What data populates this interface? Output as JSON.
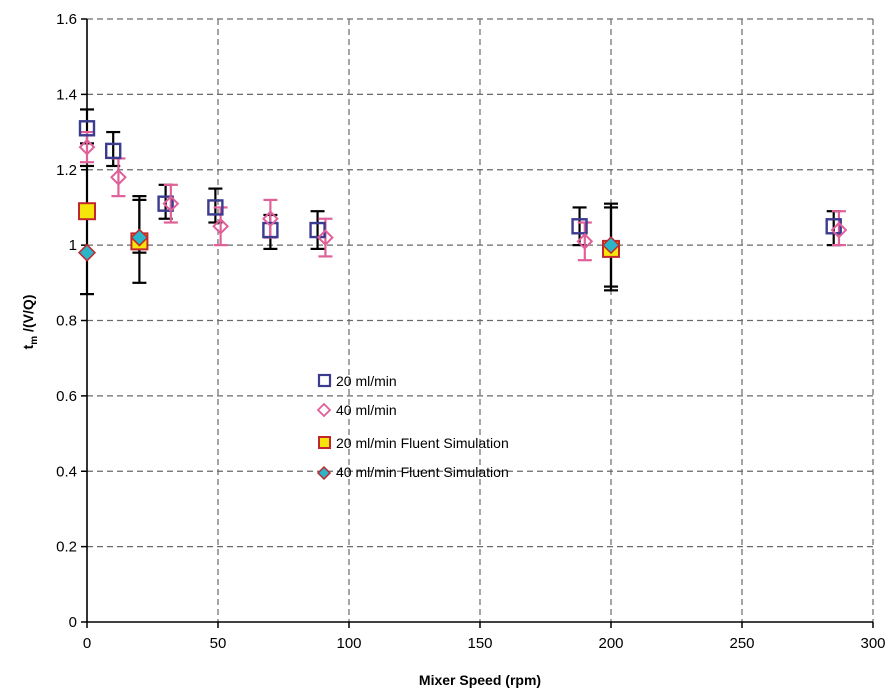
{
  "chart_data": {
    "type": "scatter",
    "title": "",
    "xlabel": "Mixer Speed (rpm)",
    "ylabel": {
      "main": "t",
      "sub": "m",
      "rest": " /(V/Q)"
    },
    "xlim": [
      0,
      300
    ],
    "ylim": [
      0,
      1.6
    ],
    "x_ticks": [
      "0",
      "50",
      "100",
      "150",
      "200",
      "250",
      "300"
    ],
    "y_ticks": [
      "0",
      "0.2",
      "0.4",
      "0.6",
      "0.8",
      "1",
      "1.2",
      "1.4",
      "1.6"
    ],
    "grid": "dashed",
    "legend_position": "center",
    "series": [
      {
        "name": "20 ml/min",
        "marker": "square-open",
        "color": "#3b3b8f",
        "points": [
          {
            "x": 0,
            "y": 1.31
          },
          {
            "x": 10,
            "y": 1.25
          },
          {
            "x": 30,
            "y": 1.11
          },
          {
            "x": 49,
            "y": 1.1
          },
          {
            "x": 70,
            "y": 1.04
          },
          {
            "x": 88,
            "y": 1.04
          },
          {
            "x": 188,
            "y": 1.05
          },
          {
            "x": 285,
            "y": 1.05
          }
        ],
        "error_bars": [
          {
            "x": 0,
            "low": 1.27,
            "high": 1.36
          },
          {
            "x": 10,
            "low": 1.21,
            "high": 1.3
          },
          {
            "x": 30,
            "low": 1.07,
            "high": 1.16
          },
          {
            "x": 49,
            "low": 1.06,
            "high": 1.15
          },
          {
            "x": 70,
            "low": 0.99,
            "high": 1.08
          },
          {
            "x": 88,
            "low": 0.99,
            "high": 1.09
          },
          {
            "x": 188,
            "low": 1.0,
            "high": 1.1
          },
          {
            "x": 285,
            "low": 1.0,
            "high": 1.09
          }
        ],
        "error_color": "#000000"
      },
      {
        "name": "40 ml/min",
        "marker": "diamond-open",
        "color": "#e0609a",
        "points": [
          {
            "x": 0,
            "y": 1.26
          },
          {
            "x": 12,
            "y": 1.18
          },
          {
            "x": 32,
            "y": 1.11
          },
          {
            "x": 51,
            "y": 1.05
          },
          {
            "x": 70,
            "y": 1.07
          },
          {
            "x": 91,
            "y": 1.02
          },
          {
            "x": 190,
            "y": 1.01
          },
          {
            "x": 287,
            "y": 1.04
          }
        ],
        "error_bars": [
          {
            "x": 0,
            "low": 1.22,
            "high": 1.3
          },
          {
            "x": 12,
            "low": 1.13,
            "high": 1.23
          },
          {
            "x": 32,
            "low": 1.06,
            "high": 1.16
          },
          {
            "x": 51,
            "low": 1.0,
            "high": 1.1
          },
          {
            "x": 70,
            "low": 1.02,
            "high": 1.12
          },
          {
            "x": 91,
            "low": 0.97,
            "high": 1.07
          },
          {
            "x": 190,
            "low": 0.96,
            "high": 1.06
          },
          {
            "x": 287,
            "low": 1.0,
            "high": 1.09
          }
        ],
        "error_color": "#e0609a"
      },
      {
        "name": "20 ml/min Fluent Simulation",
        "marker": "square-filled",
        "color": "#f5e50a",
        "stroke": "#c0282d",
        "points": [
          {
            "x": 0,
            "y": 1.09
          },
          {
            "x": 20,
            "y": 1.01
          },
          {
            "x": 200,
            "y": 0.99
          }
        ],
        "error_bars": [
          {
            "x": 20,
            "low": 0.9,
            "high": 1.13
          },
          {
            "x": 200,
            "low": 0.88,
            "high": 1.1
          }
        ],
        "error_color": "#000000"
      },
      {
        "name": "40 ml/min Fluent Simulation",
        "marker": "diamond-filled",
        "color": "#2bb5c8",
        "stroke": "#c0282d",
        "points": [
          {
            "x": 0,
            "y": 0.98
          },
          {
            "x": 20,
            "y": 1.02
          },
          {
            "x": 200,
            "y": 1.0
          }
        ],
        "error_bars": [
          {
            "x": 0,
            "low": 0.87,
            "high": 1.21
          },
          {
            "x": 20,
            "low": 0.98,
            "high": 1.12
          },
          {
            "x": 200,
            "low": 0.89,
            "high": 1.11
          }
        ],
        "error_color": "#000000"
      }
    ]
  }
}
